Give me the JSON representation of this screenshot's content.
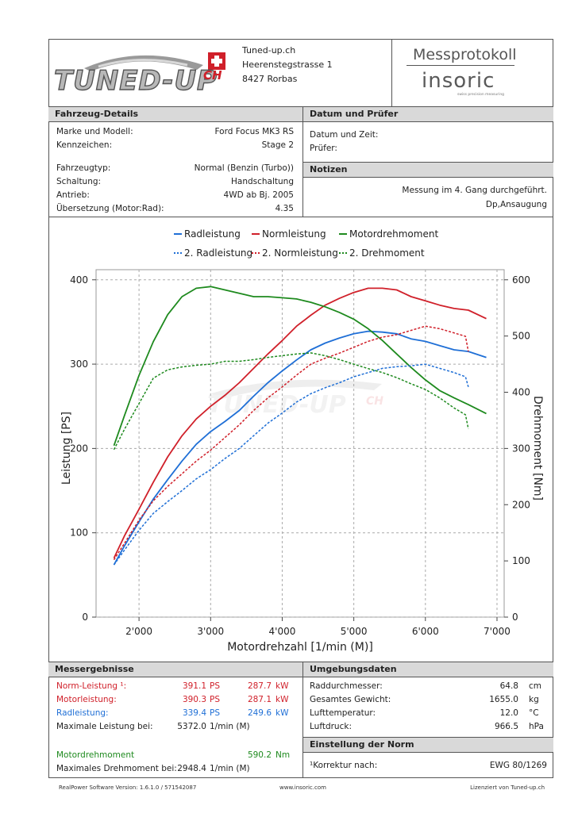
{
  "header": {
    "company_logo_text": "TUNED-UP",
    "company_logo_suffix": "CH",
    "company_name": "Tuned-up.ch",
    "street": "Heerenstegstrasse 1",
    "city": "8427 Rorbas",
    "doc_title": "Messprotokoll",
    "brand_logo": "insoric",
    "brand_tagline": "swiss precision measuring"
  },
  "vehicle": {
    "heading": "Fahrzeug-Details",
    "model_label": "Marke und Modell:",
    "model_value": "Ford Focus MK3 RS",
    "plate_label": "Kennzeichen:",
    "plate_value": "Stage 2",
    "type_label": "Fahrzeugtyp:",
    "type_value": "Normal (Benzin (Turbo))",
    "gear_label": "Schaltung:",
    "gear_value": "Handschaltung",
    "drive_label": "Antrieb:",
    "drive_value": "4WD ab Bj. 2005",
    "ratio_label": "Übersetzung (Motor:Rad):",
    "ratio_value": "4.35"
  },
  "date": {
    "heading": "Datum und Prüfer",
    "datetime_label": "Datum und Zeit:",
    "tester_label": "Prüfer:"
  },
  "notes": {
    "heading": "Notizen",
    "line1": "Messung im 4. Gang durchgeführt.",
    "line2": "Dp,Ansaugung"
  },
  "chart_data": {
    "type": "line",
    "xlabel": "Motordrehzahl [1/min (M)]",
    "ylabel": "Leistung [PS]",
    "y2label": "Drehmoment [Nm]",
    "xlim": [
      1400,
      7100
    ],
    "ylim": [
      0,
      412
    ],
    "y2lim": [
      0,
      618
    ],
    "x_ticks": [
      "2'000",
      "3'000",
      "4'000",
      "5'000",
      "6'000",
      "7'000"
    ],
    "x_tick_values": [
      2000,
      3000,
      4000,
      5000,
      6000,
      7000
    ],
    "y_ticks": [
      "0",
      "100",
      "200",
      "300",
      "400"
    ],
    "y_tick_values": [
      0,
      100,
      200,
      300,
      400
    ],
    "y2_ticks": [
      "0",
      "100",
      "200",
      "300",
      "400",
      "500",
      "600"
    ],
    "y2_tick_values": [
      0,
      100,
      200,
      300,
      400,
      500,
      600
    ],
    "grid": true,
    "legend_position": "top",
    "colors": {
      "radleistung": "#1f6fd6",
      "normleistung": "#d0202a",
      "drehmoment": "#1e8a1e"
    },
    "series": [
      {
        "name": "Radleistung",
        "axis": "left",
        "color": "#1f6fd6",
        "dash": false,
        "x": [
          1650,
          1800,
          2000,
          2200,
          2400,
          2600,
          2800,
          3000,
          3200,
          3400,
          3600,
          3800,
          4000,
          4200,
          4400,
          4600,
          4800,
          5000,
          5200,
          5400,
          5600,
          5800,
          6000,
          6200,
          6400,
          6600,
          6850
        ],
        "y": [
          62,
          85,
          113,
          140,
          163,
          185,
          205,
          220,
          232,
          245,
          262,
          278,
          292,
          305,
          317,
          325,
          331,
          336,
          339,
          338,
          336,
          330,
          327,
          322,
          317,
          315,
          308
        ]
      },
      {
        "name": "Normleistung",
        "axis": "left",
        "color": "#d0202a",
        "dash": false,
        "x": [
          1650,
          1800,
          2000,
          2200,
          2400,
          2600,
          2800,
          3000,
          3200,
          3400,
          3600,
          3800,
          4000,
          4200,
          4400,
          4600,
          4800,
          5000,
          5200,
          5400,
          5600,
          5800,
          6000,
          6200,
          6400,
          6600,
          6850
        ],
        "y": [
          70,
          97,
          128,
          160,
          190,
          215,
          235,
          250,
          263,
          278,
          295,
          312,
          328,
          345,
          358,
          370,
          378,
          385,
          390,
          390,
          388,
          380,
          375,
          370,
          366,
          364,
          354
        ]
      },
      {
        "name": "Motordrehmoment",
        "axis": "right",
        "color": "#1e8a1e",
        "dash": false,
        "x": [
          1650,
          1800,
          2000,
          2200,
          2400,
          2600,
          2800,
          3000,
          3200,
          3400,
          3600,
          3800,
          4000,
          4200,
          4400,
          4600,
          4800,
          5000,
          5200,
          5400,
          5600,
          5800,
          6000,
          6200,
          6400,
          6600,
          6850
        ],
        "y": [
          305,
          360,
          430,
          490,
          538,
          570,
          585,
          588,
          582,
          576,
          570,
          570,
          568,
          566,
          560,
          552,
          542,
          530,
          513,
          492,
          468,
          444,
          422,
          403,
          390,
          378,
          362
        ]
      },
      {
        "name": "2. Radleistung",
        "axis": "left",
        "color": "#1f6fd6",
        "dash": true,
        "x": [
          1650,
          1800,
          2000,
          2200,
          2400,
          2600,
          2800,
          3000,
          3200,
          3400,
          3600,
          3800,
          4000,
          4200,
          4400,
          4600,
          4800,
          5000,
          5200,
          5400,
          5600,
          5800,
          6000,
          6200,
          6400,
          6560,
          6600
        ],
        "y": [
          62,
          80,
          103,
          123,
          137,
          150,
          164,
          175,
          188,
          200,
          215,
          230,
          242,
          255,
          265,
          272,
          278,
          285,
          290,
          295,
          297,
          298,
          300,
          295,
          290,
          285,
          273
        ]
      },
      {
        "name": "2. Normleistung",
        "axis": "left",
        "color": "#d0202a",
        "dash": true,
        "x": [
          1650,
          1800,
          2000,
          2200,
          2400,
          2600,
          2800,
          3000,
          3200,
          3400,
          3600,
          3800,
          4000,
          4200,
          4400,
          4600,
          4800,
          5000,
          5200,
          5400,
          5600,
          5800,
          6000,
          6200,
          6400,
          6560,
          6600
        ],
        "y": [
          68,
          88,
          115,
          138,
          155,
          170,
          185,
          198,
          213,
          228,
          245,
          260,
          273,
          287,
          300,
          307,
          313,
          320,
          327,
          332,
          335,
          340,
          345,
          342,
          337,
          333,
          315
        ]
      },
      {
        "name": "2. Drehmoment",
        "axis": "right",
        "color": "#1e8a1e",
        "dash": true,
        "x": [
          1650,
          1800,
          2000,
          2200,
          2400,
          2600,
          2800,
          3000,
          3200,
          3400,
          3600,
          3800,
          4000,
          4200,
          4400,
          4600,
          4800,
          5000,
          5200,
          5400,
          5600,
          5800,
          6000,
          6200,
          6400,
          6560,
          6600
        ],
        "y": [
          298,
          335,
          380,
          425,
          440,
          445,
          448,
          450,
          455,
          455,
          458,
          462,
          465,
          468,
          470,
          465,
          458,
          450,
          442,
          435,
          426,
          415,
          405,
          390,
          372,
          360,
          335
        ]
      }
    ]
  },
  "results": {
    "heading": "Messergebnisse",
    "rows": [
      {
        "label": "Norm-Leistung ¹:",
        "ps": "391.1",
        "ps_unit": "PS",
        "kw": "287.7",
        "kw_unit": "kW"
      },
      {
        "label": "Motorleistung:",
        "ps": "390.3",
        "ps_unit": "PS",
        "kw": "287.1",
        "kw_unit": "kW"
      },
      {
        "label": "Radleistung:",
        "ps": "339.4",
        "ps_unit": "PS",
        "kw": "249.6",
        "kw_unit": "kW"
      }
    ],
    "max_power_label": "Maximale Leistung bei:",
    "max_power_value": "5372.0",
    "max_power_unit": "1/min (M)",
    "torque_label": "Motordrehmoment",
    "torque_value": "590.2",
    "torque_unit": "Nm",
    "max_torque_label": "Maximales Drehmoment bei:",
    "max_torque_value": "2948.4",
    "max_torque_unit": "1/min (M)"
  },
  "environment": {
    "heading": "Umgebungsdaten",
    "rows": [
      {
        "label": "Raddurchmesser:",
        "value": "64.8",
        "unit": "cm"
      },
      {
        "label": "Gesamtes Gewicht:",
        "value": "1655.0",
        "unit": "kg"
      },
      {
        "label": "Lufttemperatur:",
        "value": "12.0",
        "unit": "°C"
      },
      {
        "label": "Luftdruck:",
        "value": "966.5",
        "unit": "hPa"
      }
    ]
  },
  "norm": {
    "heading": "Einstellung der Norm",
    "label": "¹Korrektur nach:",
    "value": "EWG 80/1269"
  },
  "footer": {
    "software": "RealPower Software Version: 1.6.1.0 / 571542087",
    "website": "www.insoric.com",
    "license": "Lizenziert von Tuned-up.ch"
  }
}
